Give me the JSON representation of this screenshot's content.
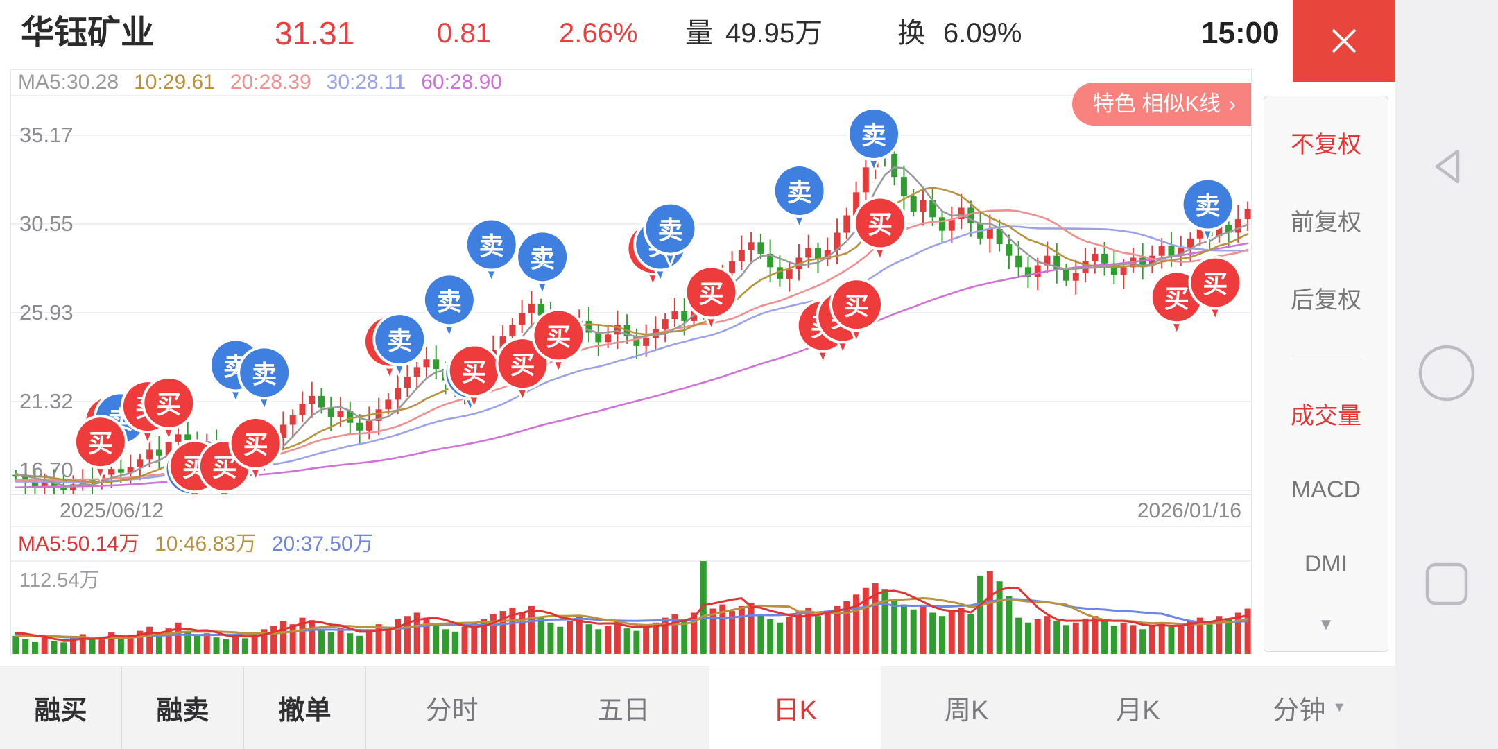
{
  "header": {
    "stock_name": "华钰矿业",
    "price": "31.31",
    "change": "0.81",
    "change_pct": "2.66%",
    "volume_label": "量",
    "volume_value": "49.95万",
    "turnover_label": "换",
    "turnover_value": "6.09%",
    "time": "15:00",
    "accent_red": "#f03c3c"
  },
  "kline": {
    "ma_labels": [
      {
        "text": "MA5:30.28",
        "color": "#9a9a9a"
      },
      {
        "text": "10:29.61",
        "color": "#b8923d"
      },
      {
        "text": "20:28.39",
        "color": "#ef8f8f"
      },
      {
        "text": "30:28.11",
        "color": "#9aa3e8"
      },
      {
        "text": "60:28.90",
        "color": "#cf72d8"
      }
    ],
    "feature_pill_text": "特色 相似K线",
    "feature_pill_arrow": "›",
    "y_axis_labels": [
      "35.17",
      "30.55",
      "25.93",
      "21.32",
      "16.70"
    ],
    "date_start": "2025/06/12",
    "date_end": "2026/01/16",
    "up_color": "#e23b3b",
    "down_color": "#2f9e2f",
    "ma_colors": {
      "ma5": "#9a9a9a",
      "ma10": "#b8923d",
      "ma20": "#ef8f8f",
      "ma30": "#9aa3e8",
      "ma60": "#cf72d8"
    },
    "buy_label": "买",
    "sell_label": "卖",
    "buy_color": "#ee3c3c",
    "sell_color": "#3f7fe0",
    "markers": [
      {
        "t": "buy",
        "fx": 0.08,
        "fy": 0.817
      },
      {
        "t": "sell",
        "fx": 0.088,
        "fy": 0.809
      },
      {
        "t": "buy",
        "fx": 0.072,
        "fy": 0.868
      },
      {
        "t": "buy",
        "fx": 0.11,
        "fy": 0.779
      },
      {
        "t": "buy",
        "fx": 0.127,
        "fy": 0.77
      },
      {
        "t": "sell",
        "fx": 0.145,
        "fy": 0.936
      },
      {
        "t": "buy",
        "fx": 0.148,
        "fy": 0.929
      },
      {
        "t": "buy",
        "fx": 0.172,
        "fy": 0.929
      },
      {
        "t": "buy",
        "fx": 0.197,
        "fy": 0.871
      },
      {
        "t": "sell",
        "fx": 0.181,
        "fy": 0.675
      },
      {
        "t": "sell",
        "fx": 0.204,
        "fy": 0.694
      },
      {
        "t": "buy",
        "fx": 0.305,
        "fy": 0.616
      },
      {
        "t": "sell",
        "fx": 0.313,
        "fy": 0.61
      },
      {
        "t": "sell",
        "fx": 0.353,
        "fy": 0.511
      },
      {
        "t": "sell",
        "fx": 0.387,
        "fy": 0.372
      },
      {
        "t": "sell",
        "fx": 0.428,
        "fy": 0.403
      },
      {
        "t": "sell",
        "fx": 0.37,
        "fy": 0.696
      },
      {
        "t": "buy",
        "fx": 0.373,
        "fy": 0.689
      },
      {
        "t": "buy",
        "fx": 0.412,
        "fy": 0.671
      },
      {
        "t": "buy",
        "fx": 0.441,
        "fy": 0.6
      },
      {
        "t": "buy",
        "fx": 0.517,
        "fy": 0.382
      },
      {
        "t": "sell",
        "fx": 0.523,
        "fy": 0.372
      },
      {
        "t": "sell",
        "fx": 0.531,
        "fy": 0.332
      },
      {
        "t": "buy",
        "fx": 0.564,
        "fy": 0.492
      },
      {
        "t": "sell",
        "fx": 0.635,
        "fy": 0.237
      },
      {
        "t": "buy",
        "fx": 0.654,
        "fy": 0.576
      },
      {
        "t": "buy",
        "fx": 0.67,
        "fy": 0.553
      },
      {
        "t": "buy",
        "fx": 0.681,
        "fy": 0.523
      },
      {
        "t": "sell",
        "fx": 0.695,
        "fy": 0.094
      },
      {
        "t": "buy",
        "fx": 0.7,
        "fy": 0.318
      },
      {
        "t": "buy",
        "fx": 0.939,
        "fy": 0.504
      },
      {
        "t": "buy",
        "fx": 0.97,
        "fy": 0.468
      },
      {
        "t": "sell",
        "fx": 0.964,
        "fy": 0.271
      }
    ]
  },
  "volume_pane": {
    "ma_labels": [
      {
        "text": "MA5:50.14万",
        "color": "#e03333"
      },
      {
        "text": "10:46.83万",
        "color": "#b8923d"
      },
      {
        "text": "20:37.50万",
        "color": "#6b85e8"
      }
    ],
    "scale_label": "112.54万",
    "ma_colors": {
      "ma5": "#e03333",
      "ma10": "#b8923d",
      "ma20": "#6b85e8"
    }
  },
  "sidebar": {
    "items": [
      {
        "label": "不复权",
        "active": true
      },
      {
        "label": "前复权",
        "active": false
      },
      {
        "label": "后复权",
        "active": false
      },
      {
        "label": "成交量",
        "active": true
      },
      {
        "label": "MACD",
        "active": false
      },
      {
        "label": "DMI",
        "active": false
      }
    ]
  },
  "bottom_tabs": [
    {
      "label": "融买",
      "group": "trade",
      "active": false
    },
    {
      "label": "融卖",
      "group": "trade",
      "active": false
    },
    {
      "label": "撤单",
      "group": "trade",
      "active": false
    },
    {
      "label": "分时",
      "group": "view",
      "active": false
    },
    {
      "label": "五日",
      "group": "view",
      "active": false
    },
    {
      "label": "日K",
      "group": "view",
      "active": true
    },
    {
      "label": "周K",
      "group": "view",
      "active": false
    },
    {
      "label": "月K",
      "group": "view",
      "active": false
    },
    {
      "label": "分钟",
      "group": "view",
      "active": false,
      "dropdown": true
    }
  ],
  "chart_data": {
    "type": "candlestick",
    "title": "华钰矿业 日K",
    "x_start": "2025/06/12",
    "x_end": "2026/01/16",
    "y_ticks": [
      35.17,
      30.55,
      25.93,
      21.32,
      16.7
    ],
    "volume_gridline": 112.54,
    "closes": [
      17.4,
      17.1,
      16.9,
      17.2,
      16.8,
      16.7,
      17.0,
      17.3,
      17.1,
      17.5,
      17.8,
      17.6,
      17.9,
      18.3,
      18.8,
      18.5,
      19.2,
      19.6,
      19.3,
      18.9,
      19.1,
      18.6,
      18.2,
      18.5,
      18.1,
      18.4,
      18.9,
      19.4,
      20.1,
      20.6,
      21.2,
      21.6,
      21.0,
      20.5,
      20.8,
      20.2,
      19.8,
      20.3,
      20.9,
      21.4,
      22.0,
      22.6,
      23.1,
      23.5,
      23.0,
      22.4,
      21.9,
      22.3,
      22.8,
      23.4,
      24.0,
      24.7,
      25.3,
      25.9,
      26.4,
      25.8,
      25.2,
      24.6,
      25.0,
      25.5,
      24.9,
      24.4,
      24.8,
      25.3,
      24.7,
      24.2,
      24.6,
      25.1,
      25.6,
      26.0,
      25.5,
      26.9,
      26.3,
      27.3,
      28.0,
      28.6,
      29.2,
      29.6,
      29.0,
      28.3,
      27.7,
      28.2,
      28.8,
      29.3,
      28.7,
      29.2,
      30.1,
      31.0,
      32.2,
      33.5,
      34.6,
      34.2,
      33.0,
      32.0,
      31.2,
      31.8,
      30.9,
      30.2,
      30.8,
      31.4,
      30.6,
      29.8,
      30.3,
      29.5,
      28.9,
      28.3,
      27.8,
      28.4,
      28.9,
      28.2,
      27.6,
      28.0,
      28.6,
      29.0,
      28.5,
      27.9,
      28.3,
      28.8,
      28.4,
      28.9,
      29.4,
      28.9,
      29.3,
      29.8,
      30.3,
      29.9,
      30.5,
      30.1,
      30.8,
      31.31
    ],
    "volumes": [
      22,
      18,
      15,
      20,
      16,
      14,
      19,
      24,
      17,
      21,
      26,
      19,
      23,
      28,
      33,
      24,
      31,
      38,
      27,
      22,
      25,
      20,
      18,
      24,
      19,
      26,
      30,
      34,
      40,
      36,
      44,
      41,
      30,
      26,
      32,
      25,
      22,
      30,
      36,
      33,
      42,
      46,
      50,
      44,
      36,
      30,
      27,
      33,
      38,
      42,
      48,
      52,
      56,
      50,
      58,
      44,
      38,
      33,
      40,
      45,
      36,
      30,
      34,
      39,
      31,
      28,
      33,
      38,
      44,
      48,
      40,
      50,
      112.5,
      55,
      60,
      52,
      58,
      62,
      48,
      42,
      38,
      45,
      52,
      56,
      46,
      50,
      58,
      64,
      72,
      80,
      86,
      78,
      66,
      60,
      54,
      58,
      50,
      46,
      52,
      56,
      48,
      95,
      100,
      88,
      70,
      44,
      38,
      42,
      46,
      40,
      35,
      38,
      43,
      46,
      40,
      34,
      38,
      35,
      30,
      34,
      38,
      33,
      36,
      40,
      44,
      40,
      46,
      42,
      50,
      55
    ]
  },
  "nav": {
    "back": "back-triangle",
    "home": "home-circle",
    "recents": "recents-square"
  }
}
